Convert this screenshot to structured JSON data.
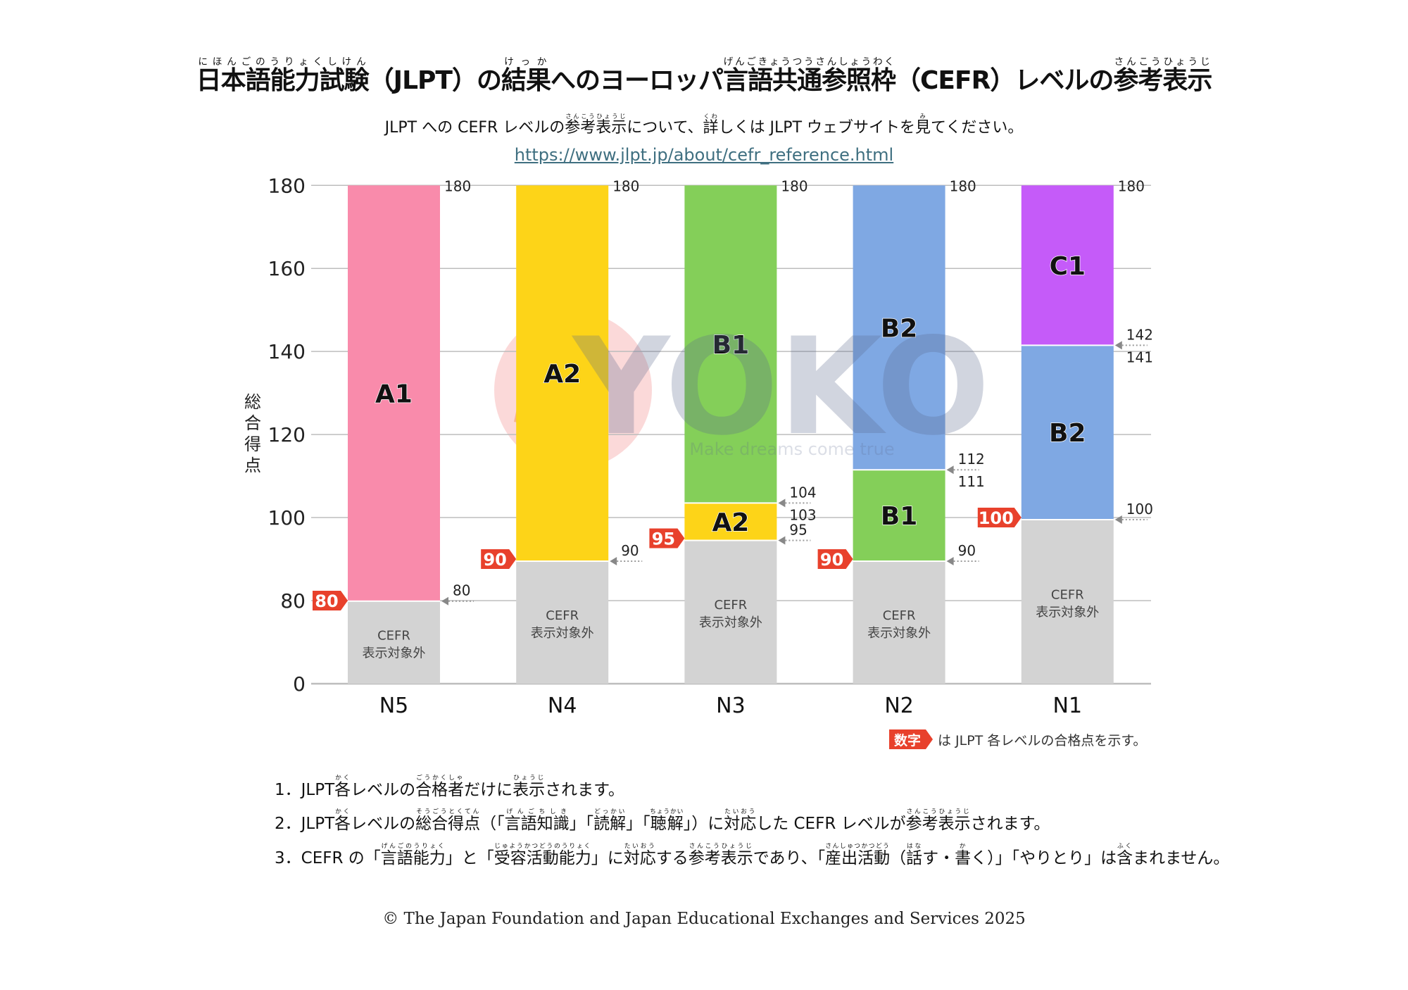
{
  "title": [
    [
      "日本語能力試験",
      "にほんごのうりょくしけん"
    ],
    [
      "（JLPT）の"
    ],
    [
      "結果",
      "けっか"
    ],
    [
      "へのヨーロッパ"
    ],
    [
      "言語共通参照枠",
      "げんごきょうつうさんしょうわく"
    ],
    [
      "（CEFR）レベルの"
    ],
    [
      "参考表示",
      "さんこうひょうじ"
    ]
  ],
  "subtitle": [
    [
      "JLPT への CEFR レベルの"
    ],
    [
      "参考表示",
      "さんこうひょうじ"
    ],
    [
      "について、"
    ],
    [
      "詳",
      "くわ"
    ],
    [
      "しくは JLPT ウェブサイトを"
    ],
    [
      "見",
      "み"
    ],
    [
      "てください。"
    ]
  ],
  "url": "https://www.jlpt.jp/about/cefr_reference.html",
  "notes": [
    [
      [
        "1．JLPT"
      ],
      [
        "各",
        "かく"
      ],
      [
        "レベルの"
      ],
      [
        "合格者",
        "ごうかくしゃ"
      ],
      [
        "だけに"
      ],
      [
        "表示",
        "ひょうじ"
      ],
      [
        "されます。"
      ]
    ],
    [
      [
        "2．JLPT"
      ],
      [
        "各",
        "かく"
      ],
      [
        "レベルの"
      ],
      [
        "総合得点",
        "そうごうとくてん"
      ],
      [
        "（「"
      ],
      [
        "言語知識",
        "げんごちしき"
      ],
      [
        "」「"
      ],
      [
        "読解",
        "どっかい"
      ],
      [
        "」「"
      ],
      [
        "聴解",
        "ちょうかい"
      ],
      [
        "」）に"
      ],
      [
        "対応",
        "たいおう"
      ],
      [
        "した CEFR レベルが"
      ],
      [
        "参考表示",
        "さんこうひょうじ"
      ],
      [
        "されます。"
      ]
    ],
    [
      [
        "3．CEFR の「"
      ],
      [
        "言語能力",
        "げんごのうりょく"
      ],
      [
        "」と「"
      ],
      [
        "受容活動能力",
        "じゅようかつどうのうりょく"
      ],
      [
        "」に"
      ],
      [
        "対応",
        "たいおう"
      ],
      [
        "する"
      ],
      [
        "参考表示",
        "さんこうひょうじ"
      ],
      [
        "であり、「"
      ],
      [
        "産出活動",
        "さんしゅつかつどう"
      ],
      [
        "（"
      ],
      [
        "話",
        "はな"
      ],
      [
        "す・"
      ],
      [
        "書",
        "か"
      ],
      [
        "く）」「やりとり」は"
      ],
      [
        "含",
        "ふく"
      ],
      [
        "まれません。"
      ]
    ]
  ],
  "copyright": "© The Japan Foundation and Japan Educational Exchanges and Services 2025",
  "watermark": {
    "text": "YOKO",
    "tagline": "Make dreams come true"
  },
  "colors": {
    "A1": "#F98BAB",
    "A2": "#FDD418",
    "B1": "#84CF59",
    "B2": "#7FA8E3",
    "C1": "#C55BF9",
    "none": "#D3D3D3",
    "badge": "#E8412C",
    "grid": "#BDBDBD"
  },
  "chart_data": {
    "type": "bar",
    "stacked": true,
    "ylabel": "総合得点",
    "yticks": [
      0,
      80,
      100,
      120,
      140,
      160,
      180
    ],
    "ylim": [
      0,
      180
    ],
    "axis_break": "0–80 compressed",
    "categories": [
      "N5",
      "N4",
      "N3",
      "N2",
      "N1"
    ],
    "none_label": [
      "CEFR",
      "表示対象外"
    ],
    "legend": {
      "badge": "数字",
      "text": "は JLPT 各レベルの合格点を示す。",
      "placement": "bottom-right"
    },
    "levels": [
      {
        "name": "N5",
        "pass": 80,
        "bands": [
          {
            "label": "none",
            "from": 0,
            "to": 79
          },
          {
            "label": "A1",
            "from": 80,
            "to": 180
          }
        ],
        "marks": [
          {
            "hi": "80"
          }
        ]
      },
      {
        "name": "N4",
        "pass": 90,
        "bands": [
          {
            "label": "none",
            "from": 0,
            "to": 89
          },
          {
            "label": "A2",
            "from": 90,
            "to": 180
          }
        ],
        "marks": [
          {
            "hi": "90"
          }
        ]
      },
      {
        "name": "N3",
        "pass": 95,
        "bands": [
          {
            "label": "none",
            "from": 0,
            "to": 94
          },
          {
            "label": "A2",
            "from": 95,
            "to": 103
          },
          {
            "label": "B1",
            "from": 104,
            "to": 180
          }
        ],
        "marks": [
          {
            "hi": "95"
          },
          {
            "hi": "104",
            "lo": "103"
          }
        ]
      },
      {
        "name": "N2",
        "pass": 90,
        "bands": [
          {
            "label": "none",
            "from": 0,
            "to": 89
          },
          {
            "label": "B1",
            "from": 90,
            "to": 111
          },
          {
            "label": "B2",
            "from": 112,
            "to": 180
          }
        ],
        "marks": [
          {
            "hi": "90"
          },
          {
            "hi": "112",
            "lo": "111"
          }
        ]
      },
      {
        "name": "N1",
        "pass": 100,
        "bands": [
          {
            "label": "none",
            "from": 0,
            "to": 99
          },
          {
            "label": "B2",
            "from": 100,
            "to": 141
          },
          {
            "label": "C1",
            "from": 142,
            "to": 180
          }
        ],
        "marks": [
          {
            "hi": "100"
          },
          {
            "hi": "142",
            "lo": "141"
          }
        ]
      }
    ],
    "top_label": "180"
  }
}
